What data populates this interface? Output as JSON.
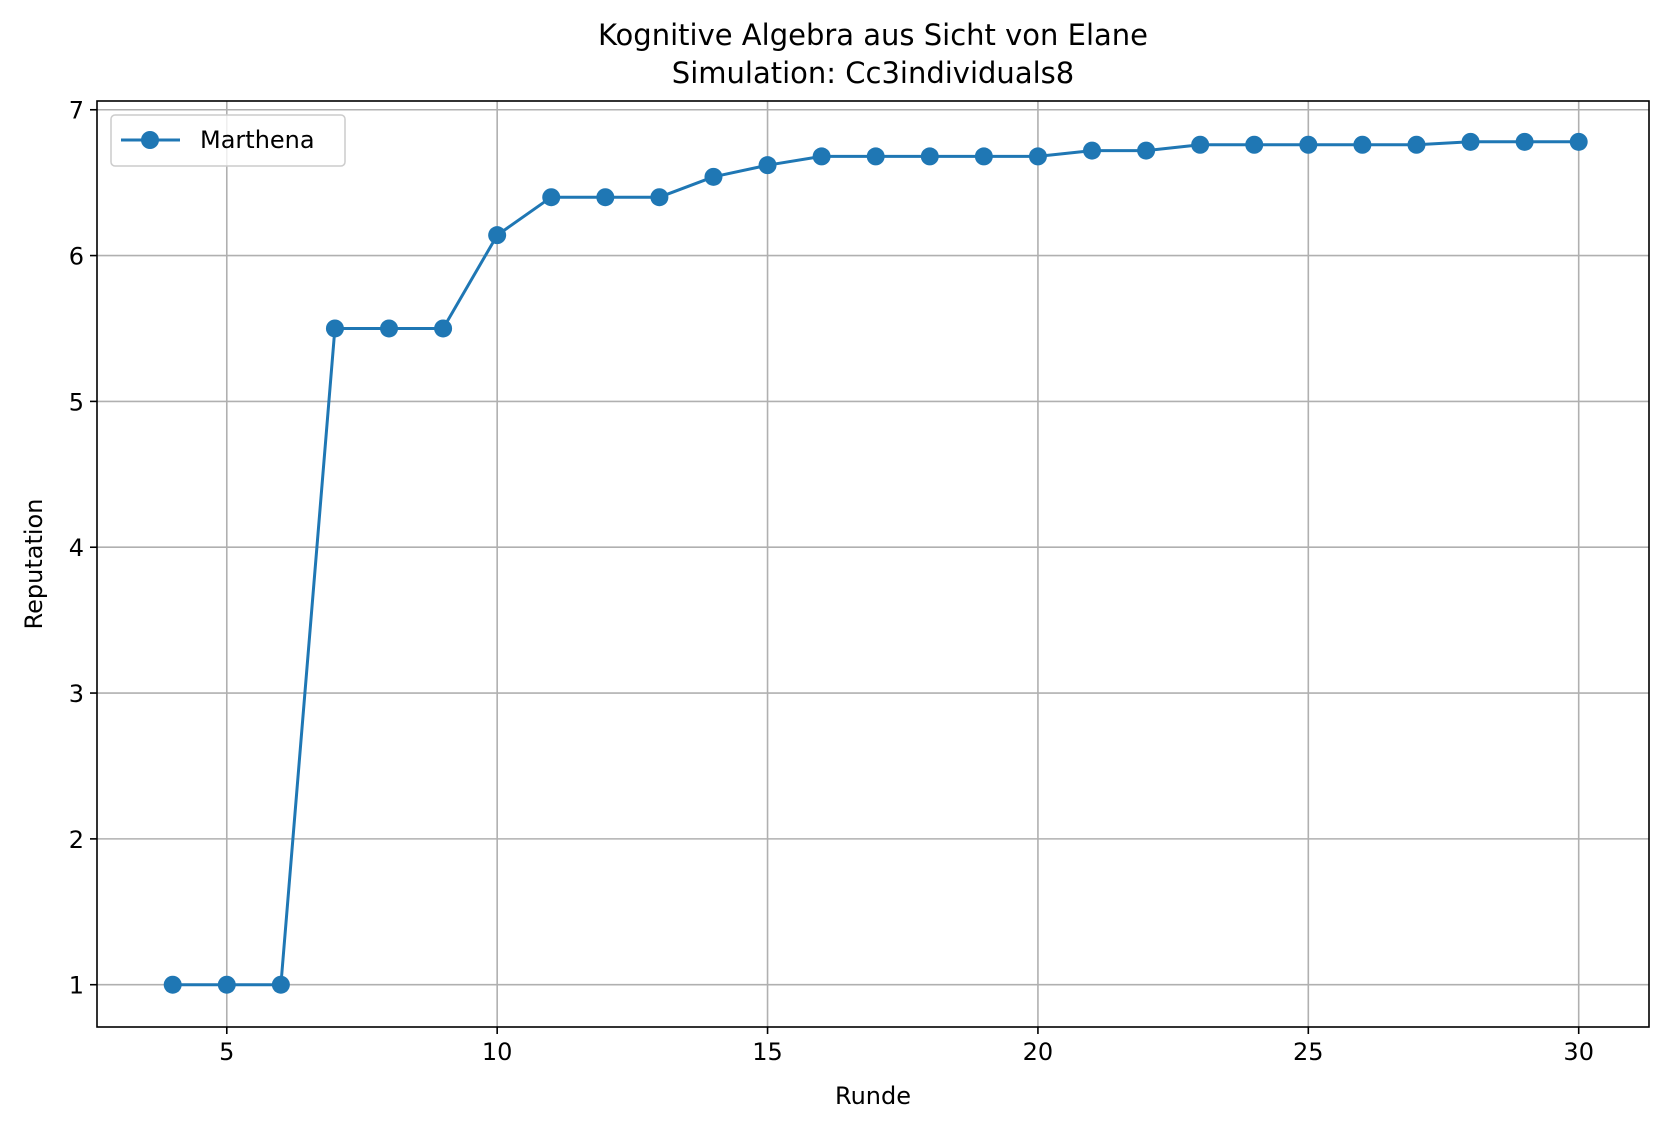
{
  "chart_data": {
    "type": "line",
    "title": "Kognitive Algebra aus Sicht von Elane",
    "subtitle": "Simulation: Cc3individuals8",
    "xlabel": "Runde",
    "ylabel": "Reputation",
    "xlim": [
      2.6,
      31.3
    ],
    "ylim": [
      0.71,
      7.06
    ],
    "xticks": [
      5,
      10,
      15,
      20,
      25,
      30
    ],
    "yticks": [
      1,
      2,
      3,
      4,
      5,
      6,
      7
    ],
    "grid": true,
    "legend_position": "top-left",
    "series": [
      {
        "name": "Marthena",
        "color": "#1f77b4",
        "marker": "circle",
        "x": [
          4,
          5,
          6,
          7,
          8,
          9,
          10,
          11,
          12,
          13,
          14,
          15,
          16,
          17,
          18,
          19,
          20,
          21,
          22,
          23,
          24,
          25,
          26,
          27,
          28,
          29,
          30
        ],
        "y": [
          1.0,
          1.0,
          1.0,
          5.5,
          5.5,
          5.5,
          6.14,
          6.4,
          6.4,
          6.4,
          6.54,
          6.62,
          6.68,
          6.68,
          6.68,
          6.68,
          6.68,
          6.72,
          6.72,
          6.76,
          6.76,
          6.76,
          6.76,
          6.76,
          6.78,
          6.78,
          6.78
        ]
      }
    ]
  }
}
